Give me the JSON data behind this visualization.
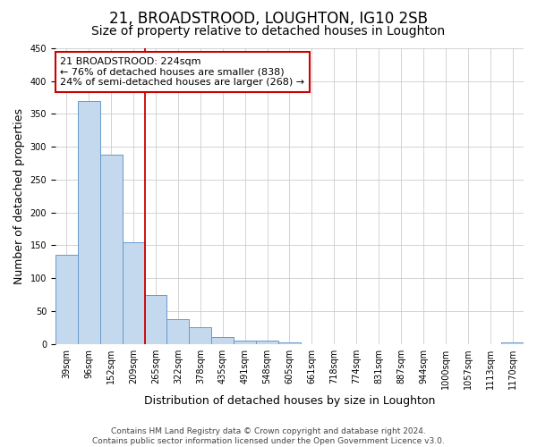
{
  "title": "21, BROADSTROOD, LOUGHTON, IG10 2SB",
  "subtitle": "Size of property relative to detached houses in Loughton",
  "xlabel": "Distribution of detached houses by size in Loughton",
  "ylabel": "Number of detached properties",
  "categories": [
    "39sqm",
    "96sqm",
    "152sqm",
    "209sqm",
    "265sqm",
    "322sqm",
    "378sqm",
    "435sqm",
    "491sqm",
    "548sqm",
    "605sqm",
    "661sqm",
    "718sqm",
    "774sqm",
    "831sqm",
    "887sqm",
    "944sqm",
    "1000sqm",
    "1057sqm",
    "1113sqm",
    "1170sqm"
  ],
  "values": [
    135,
    370,
    288,
    155,
    75,
    38,
    25,
    10,
    5,
    5,
    2,
    0,
    0,
    0,
    0,
    0,
    0,
    0,
    0,
    0,
    2
  ],
  "bar_color": "#c5d9ee",
  "bar_edge_color": "#6699cc",
  "vline_x_index": 3,
  "vline_color": "#cc0000",
  "annotation_text": "21 BROADSTROOD: 224sqm\n← 76% of detached houses are smaller (838)\n24% of semi-detached houses are larger (268) →",
  "annotation_box_color": "#ffffff",
  "annotation_box_edge": "#cc0000",
  "ylim": [
    0,
    450
  ],
  "yticks": [
    0,
    50,
    100,
    150,
    200,
    250,
    300,
    350,
    400,
    450
  ],
  "footer": "Contains HM Land Registry data © Crown copyright and database right 2024.\nContains public sector information licensed under the Open Government Licence v3.0.",
  "bg_color": "#ffffff",
  "grid_color": "#cccccc",
  "title_fontsize": 12,
  "subtitle_fontsize": 10,
  "axis_label_fontsize": 9,
  "tick_fontsize": 7,
  "footer_fontsize": 6.5,
  "annotation_fontsize": 8
}
